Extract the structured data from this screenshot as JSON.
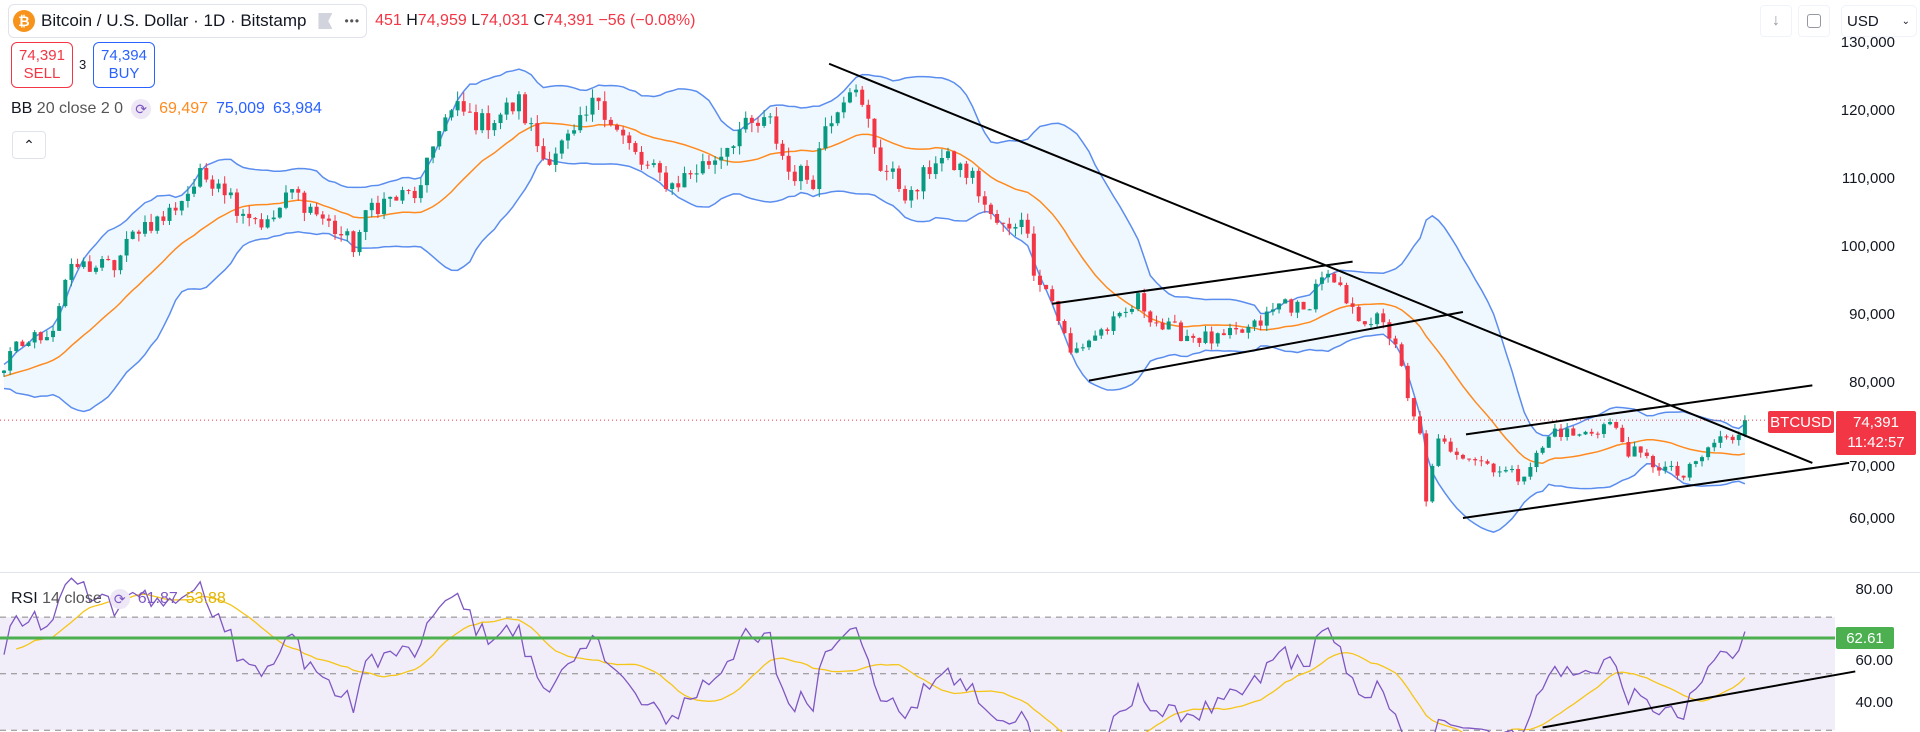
{
  "header": {
    "coin_icon_letter": "₿",
    "symbol_title": "Bitcoin / U.S. Dollar · 1D · Bitstamp",
    "more_label": "•••",
    "ohlc": {
      "open_partial": "451",
      "high_label": "H",
      "high": "74,959",
      "low_label": "L",
      "low": "74,031",
      "close_label": "C",
      "close": "74,391",
      "change": "−56 (−0.08%)"
    }
  },
  "trade": {
    "sell_price": "74,391",
    "sell_label": "SELL",
    "spread": "3",
    "buy_price": "74,394",
    "buy_label": "BUY"
  },
  "bb_legend": {
    "name": "BB",
    "params": "20 close 2 0",
    "basis": "69,497",
    "upper": "75,009",
    "lower": "63,984"
  },
  "collapse_label": "⌃",
  "toolbar": {
    "scroll_icon": "arrow-down-icon",
    "fullscreen_icon": "fullscreen-icon",
    "currency": "USD"
  },
  "rsi_legend": {
    "name": "RSI",
    "params": "14 close",
    "rsi": "61.87",
    "ma": "53.88"
  },
  "price_tag": {
    "symbol": "BTCUSD",
    "price": "74,391",
    "countdown": "11:42:57"
  },
  "rsi_tag": "62.61",
  "colors": {
    "up": "#089981",
    "down": "#f23645",
    "bb_band": "#5b8def",
    "bb_basis": "#ff8a1f",
    "rsi": "#7e57c2",
    "rsi_ma": "#f5c518",
    "hline": "#4caf50"
  },
  "chart_data": {
    "type": "candlestick",
    "title": "Bitcoin / U.S. Dollar · 1D · Bitstamp",
    "price_ticks": [
      "130,000",
      "120,000",
      "110,000",
      "100,000",
      "90,000",
      "80,000",
      "70,000",
      "60,000"
    ],
    "price_tick_values": [
      130000,
      120000,
      110000,
      100000,
      90000,
      80000,
      70000,
      60000
    ],
    "rsi_ticks": [
      "80.00",
      "60.00",
      "40.00"
    ],
    "rsi_tick_values": [
      80,
      60,
      40
    ],
    "rsi_bands": [
      70,
      50,
      30
    ],
    "rsi_hline": 62.61,
    "last_close": 74391,
    "close_anchors_day_price": [
      [
        0,
        82000
      ],
      [
        2,
        85000
      ],
      [
        8,
        88000
      ],
      [
        10,
        95000
      ],
      [
        12,
        97000
      ],
      [
        18,
        97000
      ],
      [
        22,
        103000
      ],
      [
        26,
        104000
      ],
      [
        32,
        110000
      ],
      [
        35,
        110000
      ],
      [
        38,
        106000
      ],
      [
        43,
        103000
      ],
      [
        47,
        108000
      ],
      [
        52,
        104000
      ],
      [
        57,
        100000
      ],
      [
        60,
        106000
      ],
      [
        68,
        108000
      ],
      [
        71,
        118000
      ],
      [
        74,
        120000
      ],
      [
        78,
        118000
      ],
      [
        84,
        121000
      ],
      [
        88,
        113000
      ],
      [
        93,
        116000
      ],
      [
        97,
        122000
      ],
      [
        100,
        117000
      ],
      [
        104,
        112000
      ],
      [
        109,
        109000
      ],
      [
        116,
        113000
      ],
      [
        120,
        117000
      ],
      [
        125,
        118000
      ],
      [
        128,
        111000
      ],
      [
        132,
        110000
      ],
      [
        134,
        118000
      ],
      [
        138,
        124000
      ],
      [
        141,
        118000
      ],
      [
        143,
        112000
      ],
      [
        148,
        107000
      ],
      [
        152,
        113000
      ],
      [
        155,
        112000
      ],
      [
        158,
        110000
      ],
      [
        161,
        104000
      ],
      [
        164,
        102000
      ],
      [
        166,
        105000
      ],
      [
        168,
        97000
      ],
      [
        171,
        92000
      ],
      [
        174,
        84000
      ],
      [
        178,
        87000
      ],
      [
        182,
        89000
      ],
      [
        185,
        92000
      ],
      [
        189,
        88000
      ],
      [
        193,
        87000
      ],
      [
        198,
        86000
      ],
      [
        204,
        88000
      ],
      [
        209,
        92000
      ],
      [
        212,
        90000
      ],
      [
        215,
        96000
      ],
      [
        218,
        93000
      ],
      [
        220,
        90000
      ],
      [
        224,
        89000
      ],
      [
        227,
        86000
      ],
      [
        229,
        77000
      ],
      [
        231,
        72000
      ],
      [
        232,
        63000
      ],
      [
        234,
        71000
      ],
      [
        237,
        70000
      ],
      [
        242,
        68000
      ],
      [
        247,
        66000
      ],
      [
        250,
        69000
      ],
      [
        253,
        73000
      ],
      [
        257,
        72000
      ],
      [
        262,
        74000
      ],
      [
        265,
        70000
      ],
      [
        269,
        68000
      ],
      [
        274,
        66000
      ],
      [
        277,
        69000
      ],
      [
        280,
        72000
      ],
      [
        282,
        71000
      ],
      [
        284,
        74391
      ]
    ],
    "trend_lines": [
      {
        "name": "major-downtrend",
        "from": [
          134.6,
          126800
        ],
        "to": [
          295,
          68100
        ]
      },
      {
        "name": "bear-flag-upper",
        "from": [
          171,
          91500
        ],
        "to": [
          220,
          97700
        ]
      },
      {
        "name": "bear-flag-lower",
        "from": [
          177,
          80200
        ],
        "to": [
          238,
          90300
        ]
      },
      {
        "name": "channel-upper",
        "from": [
          238.5,
          72300
        ],
        "to": [
          295,
          79500
        ]
      },
      {
        "name": "channel-lower",
        "from": [
          238,
          60000
        ],
        "to": [
          301,
          68100
        ]
      }
    ],
    "rsi_trend_line": {
      "from": [
        251,
        31
      ],
      "to": [
        302,
        50.8
      ]
    }
  }
}
